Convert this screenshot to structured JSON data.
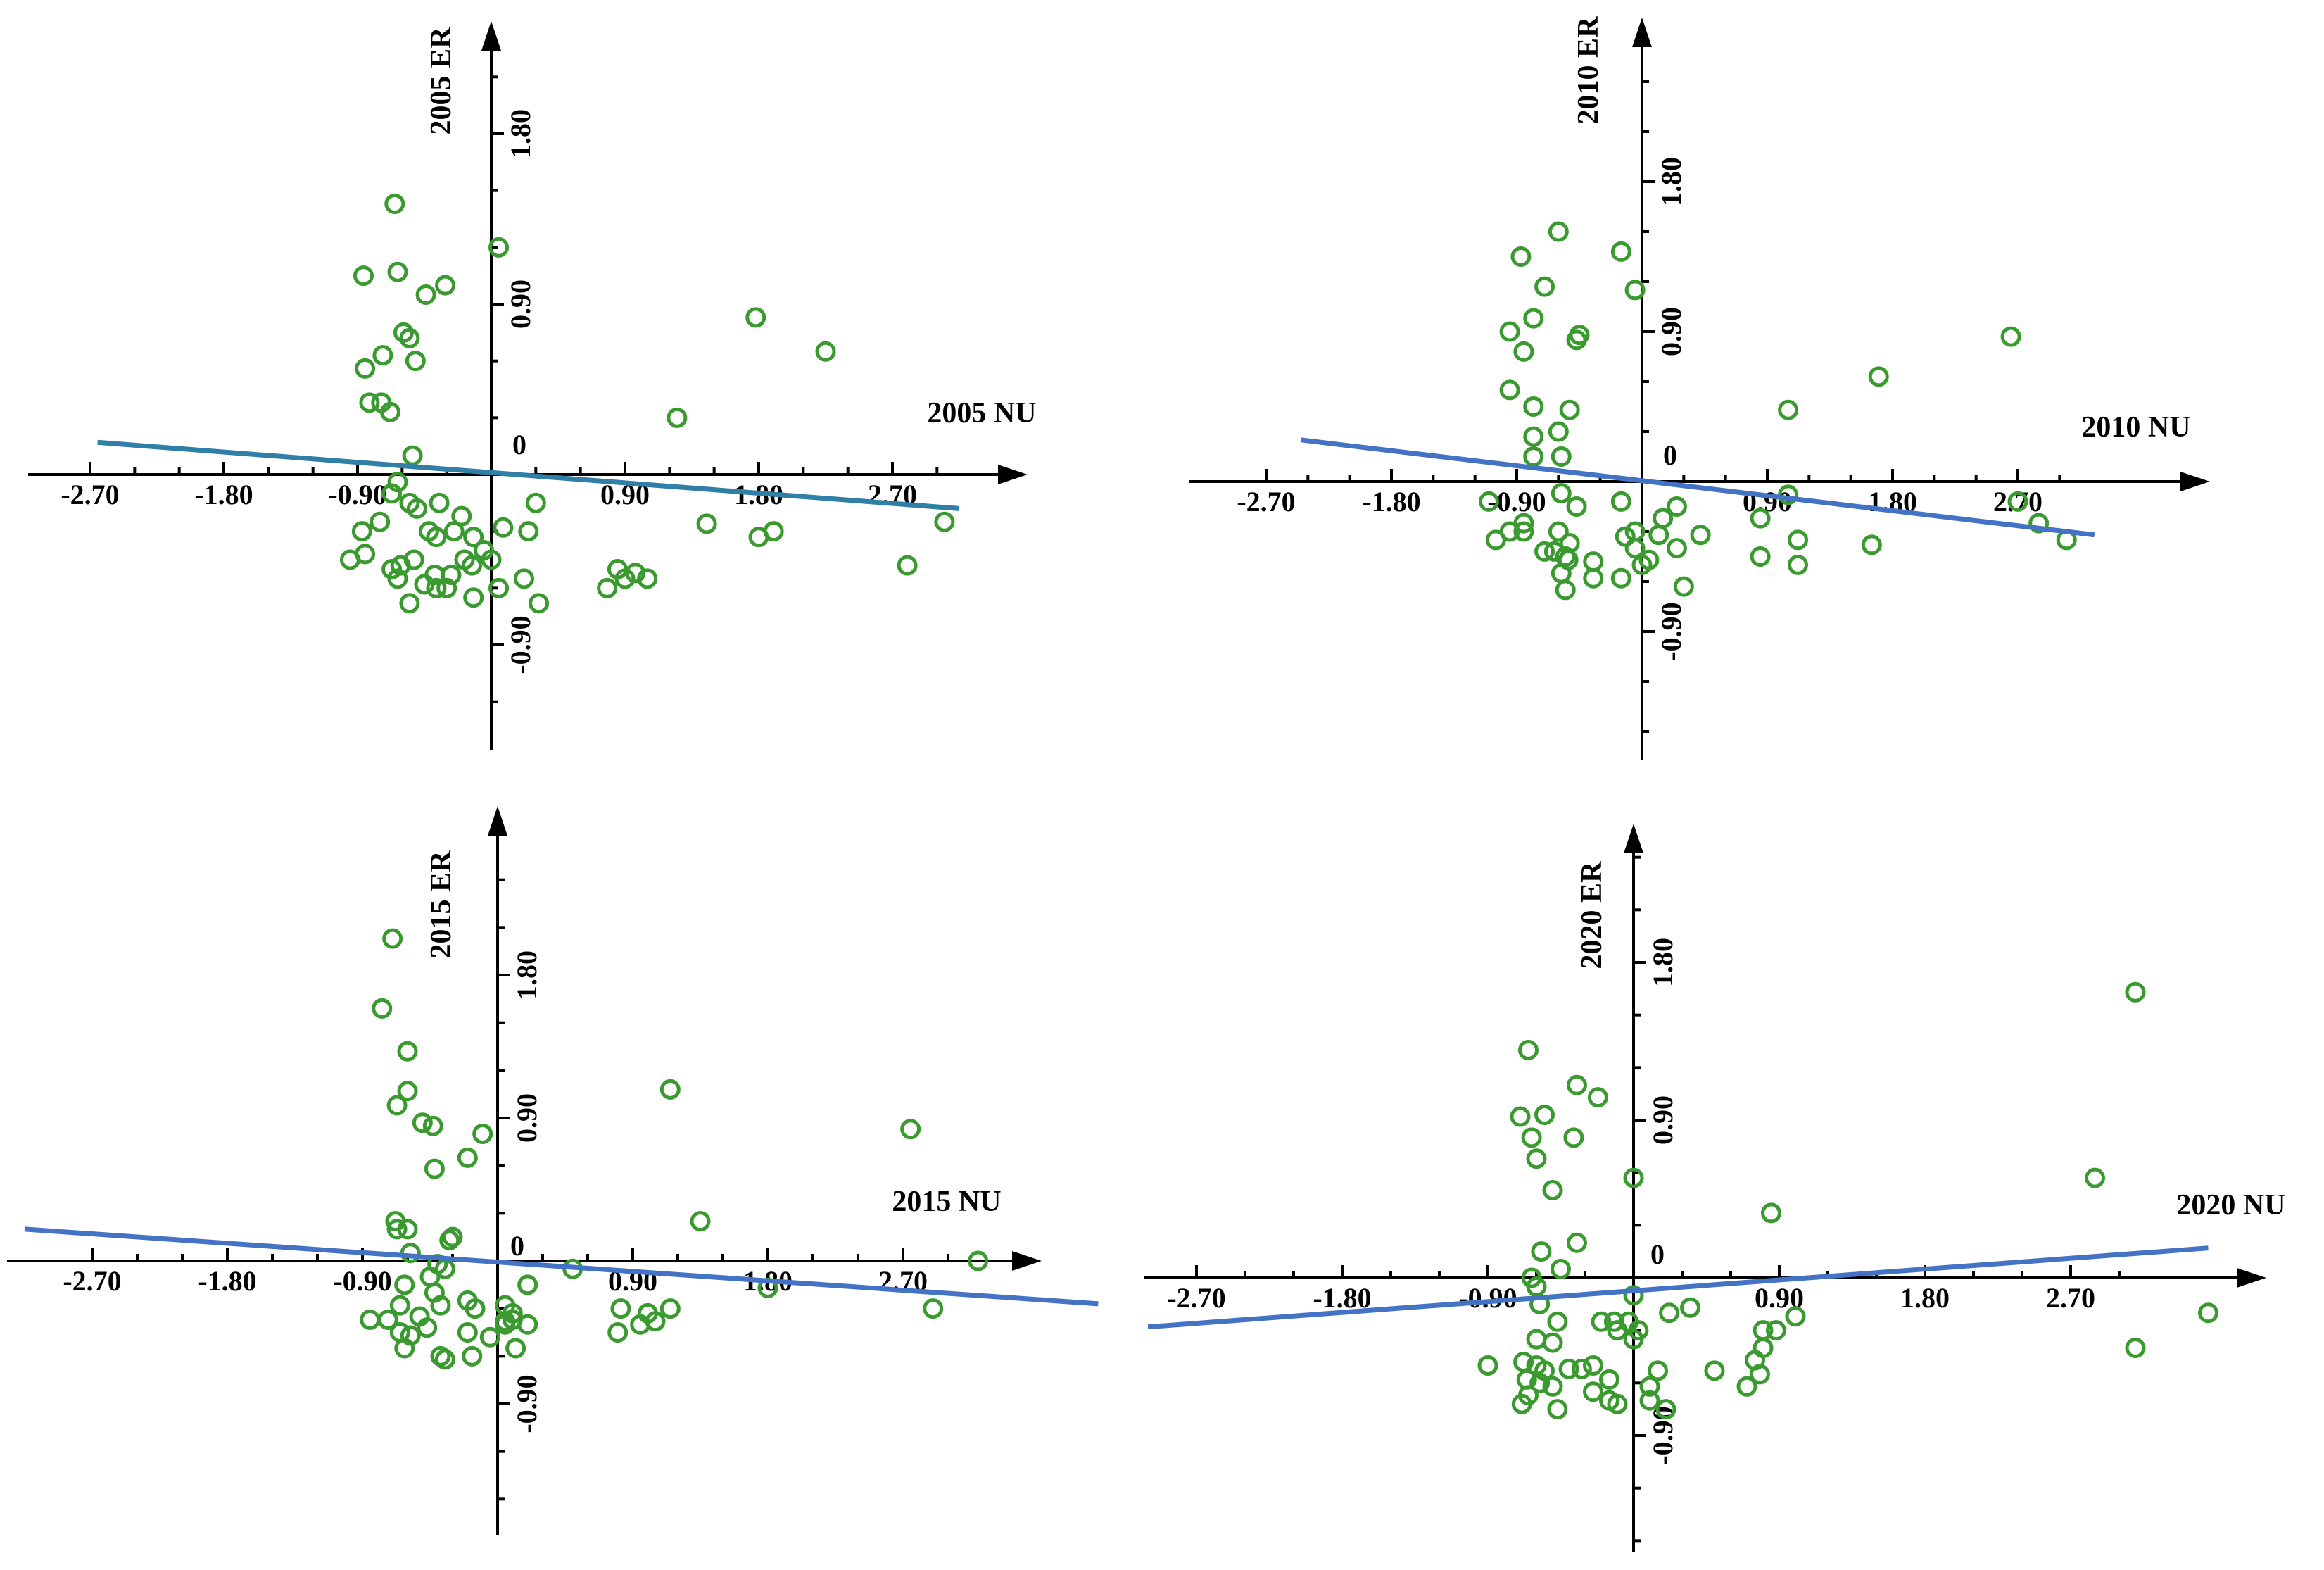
{
  "chart_data": [
    {
      "type": "scatter",
      "xlabel": "2005 NU",
      "ylabel": "2005 ER",
      "x_ticks": [
        "-2.70",
        "-1.80",
        "-0.90",
        "0.90",
        "1.80",
        "2.70"
      ],
      "y_ticks": [
        "1.80",
        "0.90",
        "-0.90"
      ],
      "origin_label": "0",
      "point_color": "#3a9a2f",
      "line_color": "#2f7fa6",
      "regression": {
        "x": [
          -2.65,
          3.15
        ],
        "y": [
          0.17,
          -0.18
        ]
      },
      "points": [
        [
          -0.65,
          1.43
        ],
        [
          0.05,
          1.2
        ],
        [
          -0.63,
          1.07
        ],
        [
          -0.86,
          1.05
        ],
        [
          -0.31,
          1.0
        ],
        [
          -0.44,
          0.95
        ],
        [
          1.78,
          0.83
        ],
        [
          -0.59,
          0.75
        ],
        [
          -0.55,
          0.72
        ],
        [
          -0.73,
          0.63
        ],
        [
          -0.85,
          0.56
        ],
        [
          -0.51,
          0.6
        ],
        [
          2.25,
          0.65
        ],
        [
          -0.82,
          0.38
        ],
        [
          -0.74,
          0.38
        ],
        [
          -0.68,
          0.33
        ],
        [
          1.25,
          0.3
        ],
        [
          -0.53,
          0.1
        ],
        [
          -0.63,
          -0.04
        ],
        [
          -0.67,
          -0.1
        ],
        [
          -0.55,
          -0.15
        ],
        [
          -0.5,
          -0.18
        ],
        [
          -0.35,
          -0.15
        ],
        [
          -0.2,
          -0.22
        ],
        [
          0.3,
          -0.15
        ],
        [
          1.45,
          -0.26
        ],
        [
          -0.87,
          -0.3
        ],
        [
          -0.75,
          -0.25
        ],
        [
          -0.42,
          -0.3
        ],
        [
          -0.37,
          -0.33
        ],
        [
          -0.25,
          -0.3
        ],
        [
          -0.12,
          -0.33
        ],
        [
          0.08,
          -0.28
        ],
        [
          0.25,
          -0.3
        ],
        [
          1.8,
          -0.33
        ],
        [
          1.9,
          -0.3
        ],
        [
          3.05,
          -0.25
        ],
        [
          -0.95,
          -0.45
        ],
        [
          -0.85,
          -0.42
        ],
        [
          -0.67,
          -0.5
        ],
        [
          -0.61,
          -0.48
        ],
        [
          -0.52,
          -0.45
        ],
        [
          -0.45,
          -0.58
        ],
        [
          -0.38,
          -0.53
        ],
        [
          -0.27,
          -0.53
        ],
        [
          -0.18,
          -0.45
        ],
        [
          -0.13,
          -0.48
        ],
        [
          -0.05,
          -0.4
        ],
        [
          0.0,
          -0.45
        ],
        [
          0.22,
          -0.55
        ],
        [
          0.85,
          -0.5
        ],
        [
          0.97,
          -0.52
        ],
        [
          1.05,
          -0.55
        ],
        [
          2.8,
          -0.48
        ],
        [
          -0.55,
          -0.68
        ],
        [
          -0.63,
          -0.55
        ],
        [
          -0.37,
          -0.6
        ],
        [
          -0.3,
          -0.6
        ],
        [
          -0.12,
          -0.65
        ],
        [
          0.05,
          -0.6
        ],
        [
          0.32,
          -0.68
        ],
        [
          0.78,
          -0.6
        ],
        [
          0.9,
          -0.55
        ]
      ]
    },
    {
      "type": "scatter",
      "xlabel": "2010 NU",
      "ylabel": "2010 ER",
      "x_ticks": [
        "-2.70",
        "-1.80",
        "-0.90",
        "0.90",
        "1.80",
        "2.70"
      ],
      "y_ticks": [
        "1.80",
        "0.90",
        "-0.90"
      ],
      "origin_label": "0",
      "point_color": "#3a9a2f",
      "line_color": "#4472c4",
      "regression": {
        "x": [
          -2.45,
          3.25
        ],
        "y": [
          0.25,
          -0.32
        ]
      },
      "points": [
        [
          -0.6,
          1.5
        ],
        [
          -0.15,
          1.38
        ],
        [
          -0.87,
          1.35
        ],
        [
          -0.7,
          1.17
        ],
        [
          -0.05,
          1.15
        ],
        [
          -0.78,
          0.98
        ],
        [
          -0.95,
          0.9
        ],
        [
          -0.45,
          0.88
        ],
        [
          -0.47,
          0.85
        ],
        [
          -0.85,
          0.78
        ],
        [
          2.65,
          0.87
        ],
        [
          1.7,
          0.63
        ],
        [
          -0.95,
          0.55
        ],
        [
          -0.78,
          0.45
        ],
        [
          -0.52,
          0.43
        ],
        [
          1.05,
          0.43
        ],
        [
          -0.6,
          0.3
        ],
        [
          -0.78,
          0.27
        ],
        [
          -0.78,
          0.15
        ],
        [
          -0.58,
          0.15
        ],
        [
          -1.1,
          -0.12
        ],
        [
          -0.58,
          -0.07
        ],
        [
          -0.47,
          -0.15
        ],
        [
          -0.15,
          -0.12
        ],
        [
          0.25,
          -0.15
        ],
        [
          1.05,
          -0.08
        ],
        [
          2.7,
          -0.12
        ],
        [
          0.15,
          -0.22
        ],
        [
          -0.85,
          -0.25
        ],
        [
          -0.85,
          -0.3
        ],
        [
          -0.6,
          -0.3
        ],
        [
          -0.05,
          -0.3
        ],
        [
          0.85,
          -0.22
        ],
        [
          2.85,
          -0.25
        ],
        [
          -1.05,
          -0.35
        ],
        [
          -0.95,
          -0.3
        ],
        [
          -0.52,
          -0.37
        ],
        [
          -0.12,
          -0.33
        ],
        [
          0.12,
          -0.32
        ],
        [
          0.42,
          -0.32
        ],
        [
          -0.7,
          -0.42
        ],
        [
          -0.63,
          -0.42
        ],
        [
          -0.55,
          -0.45
        ],
        [
          -0.05,
          -0.4
        ],
        [
          1.12,
          -0.35
        ],
        [
          1.65,
          -0.38
        ],
        [
          3.05,
          -0.35
        ],
        [
          -0.53,
          -0.47
        ],
        [
          -0.35,
          -0.48
        ],
        [
          0.05,
          -0.47
        ],
        [
          0.25,
          -0.4
        ],
        [
          0.85,
          -0.45
        ],
        [
          0.0,
          -0.5
        ],
        [
          1.12,
          -0.5
        ],
        [
          -0.58,
          -0.55
        ],
        [
          -0.35,
          -0.58
        ],
        [
          -0.15,
          -0.58
        ],
        [
          0.3,
          -0.63
        ],
        [
          -0.55,
          -0.65
        ]
      ]
    },
    {
      "type": "scatter",
      "xlabel": "2015 NU",
      "ylabel": "2015 ER",
      "x_ticks": [
        "-2.70",
        "-1.80",
        "-0.90",
        "0.90",
        "1.80",
        "2.70"
      ],
      "y_ticks": [
        "1.80",
        "0.90",
        "-0.90"
      ],
      "origin_label": "0",
      "point_color": "#3a9a2f",
      "line_color": "#4472c4",
      "regression": {
        "x": [
          -3.15,
          4.0
        ],
        "y": [
          0.2,
          -0.27
        ]
      },
      "points": [
        [
          -0.7,
          2.03
        ],
        [
          -0.77,
          1.59
        ],
        [
          -0.6,
          1.32
        ],
        [
          -0.6,
          1.07
        ],
        [
          -0.67,
          0.98
        ],
        [
          1.15,
          1.08
        ],
        [
          -0.5,
          0.87
        ],
        [
          -0.43,
          0.85
        ],
        [
          2.75,
          0.83
        ],
        [
          -0.1,
          0.8
        ],
        [
          -0.2,
          0.65
        ],
        [
          -0.42,
          0.58
        ],
        [
          1.35,
          0.25
        ],
        [
          -0.68,
          0.25
        ],
        [
          -0.67,
          0.2
        ],
        [
          -0.6,
          0.2
        ],
        [
          -0.32,
          0.13
        ],
        [
          -0.3,
          0.15
        ],
        [
          -0.58,
          0.05
        ],
        [
          -0.4,
          -0.02
        ],
        [
          0.5,
          -0.05
        ],
        [
          -0.62,
          -0.15
        ],
        [
          -0.45,
          -0.1
        ],
        [
          -0.35,
          -0.05
        ],
        [
          -0.42,
          -0.2
        ],
        [
          -0.2,
          -0.25
        ],
        [
          0.2,
          -0.15
        ],
        [
          3.2,
          0.0
        ],
        [
          -0.65,
          -0.28
        ],
        [
          -0.38,
          -0.28
        ],
        [
          -0.15,
          -0.3
        ],
        [
          0.05,
          -0.28
        ],
        [
          0.1,
          -0.33
        ],
        [
          0.82,
          -0.3
        ],
        [
          1.0,
          -0.33
        ],
        [
          1.15,
          -0.3
        ],
        [
          -0.73,
          -0.37
        ],
        [
          -0.52,
          -0.35
        ],
        [
          -0.47,
          -0.42
        ],
        [
          0.05,
          -0.38
        ],
        [
          0.1,
          -0.37
        ],
        [
          0.2,
          -0.4
        ],
        [
          0.95,
          -0.4
        ],
        [
          1.8,
          -0.17
        ],
        [
          2.9,
          -0.3
        ],
        [
          -0.85,
          -0.37
        ],
        [
          -0.65,
          -0.45
        ],
        [
          -0.58,
          -0.47
        ],
        [
          -0.2,
          -0.45
        ],
        [
          -0.05,
          -0.48
        ],
        [
          0.05,
          -0.4
        ],
        [
          0.8,
          -0.45
        ],
        [
          1.05,
          -0.38
        ],
        [
          -0.62,
          -0.55
        ],
        [
          -0.38,
          -0.6
        ],
        [
          -0.35,
          -0.62
        ],
        [
          -0.17,
          -0.6
        ],
        [
          0.12,
          -0.55
        ]
      ]
    },
    {
      "type": "scatter",
      "xlabel": "2020 NU",
      "ylabel": "2020 ER",
      "x_ticks": [
        "-2.70",
        "-1.80",
        "-0.90",
        "0.90",
        "1.80",
        "2.70"
      ],
      "y_ticks": [
        "1.80",
        "0.90",
        "-0.90"
      ],
      "origin_label": "0",
      "point_color": "#3a9a2f",
      "line_color": "#4472c4",
      "regression": {
        "x": [
          -3.0,
          3.55
        ],
        "y": [
          -0.28,
          0.17
        ]
      },
      "points": [
        [
          3.1,
          1.63
        ],
        [
          -0.65,
          1.3
        ],
        [
          -0.35,
          1.1
        ],
        [
          -0.22,
          1.03
        ],
        [
          -0.7,
          0.92
        ],
        [
          -0.55,
          0.93
        ],
        [
          -0.63,
          0.8
        ],
        [
          -0.37,
          0.8
        ],
        [
          -0.6,
          0.68
        ],
        [
          -0.5,
          0.5
        ],
        [
          0.0,
          0.57
        ],
        [
          2.85,
          0.57
        ],
        [
          0.85,
          0.37
        ],
        [
          -0.35,
          0.2
        ],
        [
          -0.57,
          0.15
        ],
        [
          -0.45,
          0.05
        ],
        [
          -0.63,
          0.0
        ],
        [
          -0.6,
          -0.05
        ],
        [
          0.0,
          -0.1
        ],
        [
          -0.58,
          -0.15
        ],
        [
          0.22,
          -0.2
        ],
        [
          0.35,
          -0.17
        ],
        [
          1.0,
          -0.22
        ],
        [
          -0.47,
          -0.25
        ],
        [
          -0.2,
          -0.25
        ],
        [
          -0.12,
          -0.25
        ],
        [
          -0.03,
          -0.25
        ],
        [
          0.03,
          -0.3
        ],
        [
          0.8,
          -0.3
        ],
        [
          0.88,
          -0.3
        ],
        [
          -0.6,
          -0.35
        ],
        [
          -0.5,
          -0.37
        ],
        [
          -0.1,
          -0.3
        ],
        [
          0.0,
          -0.35
        ],
        [
          0.8,
          -0.4
        ],
        [
          -0.9,
          -0.5
        ],
        [
          -0.68,
          -0.48
        ],
        [
          -0.6,
          -0.5
        ],
        [
          -0.55,
          -0.53
        ],
        [
          -0.4,
          -0.52
        ],
        [
          -0.32,
          -0.52
        ],
        [
          -0.25,
          -0.5
        ],
        [
          0.75,
          -0.47
        ],
        [
          3.1,
          -0.4
        ],
        [
          3.55,
          -0.2
        ],
        [
          -0.66,
          -0.58
        ],
        [
          -0.58,
          -0.6
        ],
        [
          -0.15,
          -0.58
        ],
        [
          0.15,
          -0.53
        ],
        [
          0.5,
          -0.53
        ],
        [
          0.78,
          -0.55
        ],
        [
          -0.65,
          -0.67
        ],
        [
          -0.5,
          -0.62
        ],
        [
          -0.25,
          -0.65
        ],
        [
          0.1,
          -0.62
        ],
        [
          0.1,
          -0.7
        ],
        [
          0.7,
          -0.62
        ],
        [
          -0.69,
          -0.72
        ],
        [
          -0.47,
          -0.75
        ],
        [
          -0.15,
          -0.7
        ],
        [
          -0.1,
          -0.72
        ],
        [
          0.2,
          -0.75
        ]
      ]
    }
  ]
}
